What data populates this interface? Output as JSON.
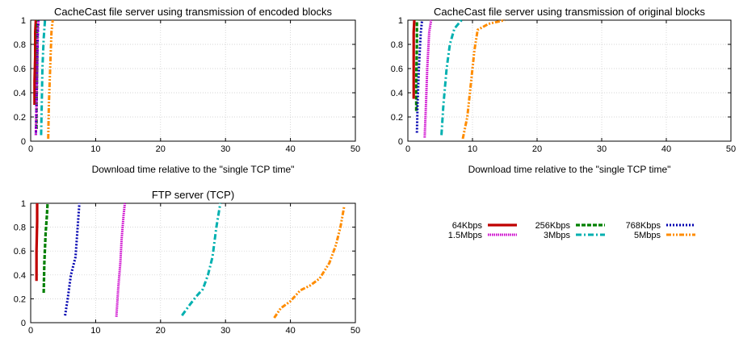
{
  "chart_data": [
    {
      "type": "line",
      "title": "CacheCast file server using transmission of encoded blocks",
      "xlabel": "Download time relative to the \"single TCP time\"",
      "ylabel": "",
      "xlim": [
        0,
        50
      ],
      "ylim": [
        0,
        1
      ],
      "xticks": [
        "0",
        "10",
        "20",
        "30",
        "40",
        "50"
      ],
      "yticks": [
        "0",
        "0.2",
        "0.4",
        "0.6",
        "0.8",
        "1"
      ],
      "grid": true,
      "series": [
        {
          "name": "64Kbps",
          "x": [
            0.6,
            0.6,
            0.7,
            0.7,
            0.8
          ],
          "y": [
            0.3,
            0.5,
            0.7,
            0.9,
            1.0
          ]
        },
        {
          "name": "256Kbps",
          "x": [
            0.9,
            0.9,
            1.0,
            1.0,
            1.1
          ],
          "y": [
            0.1,
            0.3,
            0.6,
            0.9,
            1.0
          ]
        },
        {
          "name": "768Kbps",
          "x": [
            0.8,
            0.9,
            1.0,
            1.1,
            1.2
          ],
          "y": [
            0.05,
            0.3,
            0.6,
            0.9,
            1.0
          ]
        },
        {
          "name": "1.5Mbps",
          "x": [
            0.8,
            0.9,
            1.0,
            1.1,
            1.2
          ],
          "y": [
            0.05,
            0.3,
            0.6,
            0.9,
            1.0
          ]
        },
        {
          "name": "3Mbps",
          "x": [
            1.6,
            1.7,
            1.8,
            2.0,
            2.2
          ],
          "y": [
            0.05,
            0.3,
            0.6,
            0.85,
            1.0
          ]
        },
        {
          "name": "5Mbps",
          "x": [
            2.7,
            2.8,
            3.0,
            3.2,
            3.4
          ],
          "y": [
            0.02,
            0.3,
            0.6,
            0.9,
            1.0
          ]
        }
      ]
    },
    {
      "type": "line",
      "title": "CacheCast file server using transmission of original blocks",
      "xlabel": "Download time relative to the \"single TCP time\"",
      "ylabel": "",
      "xlim": [
        0,
        50
      ],
      "ylim": [
        0,
        1
      ],
      "xticks": [
        "0",
        "10",
        "20",
        "30",
        "40",
        "50"
      ],
      "yticks": [
        "0",
        "0.2",
        "0.4",
        "0.6",
        "0.8",
        "1"
      ],
      "grid": true,
      "series": [
        {
          "name": "64Kbps",
          "x": [
            0.9,
            0.9,
            0.9,
            1.0
          ],
          "y": [
            0.35,
            0.6,
            0.9,
            1.0
          ]
        },
        {
          "name": "256Kbps",
          "x": [
            1.3,
            1.3,
            1.4,
            1.4
          ],
          "y": [
            0.25,
            0.5,
            0.8,
            1.0
          ]
        },
        {
          "name": "768Kbps",
          "x": [
            1.4,
            1.5,
            1.7,
            2.0,
            2.2
          ],
          "y": [
            0.07,
            0.3,
            0.6,
            0.9,
            1.0
          ]
        },
        {
          "name": "1.5Mbps",
          "x": [
            2.6,
            2.8,
            3.0,
            3.3,
            3.6
          ],
          "y": [
            0.03,
            0.3,
            0.6,
            0.9,
            1.0
          ]
        },
        {
          "name": "3Mbps",
          "x": [
            5.2,
            5.5,
            6.0,
            6.5,
            7.2,
            8.3
          ],
          "y": [
            0.05,
            0.3,
            0.6,
            0.8,
            0.93,
            1.0
          ]
        },
        {
          "name": "5Mbps",
          "x": [
            8.5,
            9.2,
            9.8,
            10.3,
            10.8,
            12.5,
            15.0
          ],
          "y": [
            0.02,
            0.2,
            0.5,
            0.75,
            0.92,
            0.97,
            1.0
          ]
        }
      ]
    },
    {
      "type": "line",
      "title": "FTP server (TCP)",
      "xlabel": "",
      "ylabel": "",
      "xlim": [
        0,
        50
      ],
      "ylim": [
        0,
        1
      ],
      "xticks": [
        "0",
        "10",
        "20",
        "30",
        "40",
        "50"
      ],
      "yticks": [
        "0",
        "0.2",
        "0.4",
        "0.6",
        "0.8",
        "1"
      ],
      "grid": true,
      "series": [
        {
          "name": "64Kbps",
          "x": [
            0.9,
            0.9,
            1.0,
            1.0
          ],
          "y": [
            0.35,
            0.6,
            0.85,
            1.0
          ]
        },
        {
          "name": "256Kbps",
          "x": [
            2.0,
            2.1,
            2.3,
            2.5,
            2.6
          ],
          "y": [
            0.25,
            0.5,
            0.75,
            0.9,
            1.0
          ]
        },
        {
          "name": "768Kbps",
          "x": [
            5.3,
            5.7,
            6.2,
            6.9,
            7.1,
            7.5
          ],
          "y": [
            0.06,
            0.2,
            0.4,
            0.55,
            0.7,
            1.0
          ]
        },
        {
          "name": "1.5Mbps",
          "x": [
            13.2,
            13.5,
            13.8,
            14.0,
            14.3,
            14.5
          ],
          "y": [
            0.05,
            0.3,
            0.5,
            0.7,
            0.9,
            1.0
          ]
        },
        {
          "name": "3Mbps",
          "x": [
            23.3,
            24.5,
            25.5,
            26.5,
            27.3,
            28.0,
            28.6,
            29.2
          ],
          "y": [
            0.06,
            0.15,
            0.22,
            0.28,
            0.4,
            0.55,
            0.8,
            1.0
          ]
        },
        {
          "name": "5Mbps",
          "x": [
            37.5,
            38.5,
            40.0,
            41.5,
            43.0,
            44.5,
            46.0,
            47.0,
            47.7,
            48.3
          ],
          "y": [
            0.04,
            0.12,
            0.18,
            0.27,
            0.31,
            0.37,
            0.5,
            0.65,
            0.8,
            0.98
          ]
        }
      ]
    }
  ],
  "legend": {
    "placement": "bottom-right",
    "items": [
      {
        "name": "64Kbps",
        "color": "#c00000",
        "style": "solid"
      },
      {
        "name": "256Kbps",
        "color": "#008000",
        "style": "dashed"
      },
      {
        "name": "768Kbps",
        "color": "#0000b0",
        "style": "dotted"
      },
      {
        "name": "1.5Mbps",
        "color": "#cc00cc",
        "style": "dense-dotted"
      },
      {
        "name": "3Mbps",
        "color": "#00b0b0",
        "style": "dash-dot"
      },
      {
        "name": "5Mbps",
        "color": "#ff8c00",
        "style": "dash-dot-dot"
      }
    ]
  }
}
